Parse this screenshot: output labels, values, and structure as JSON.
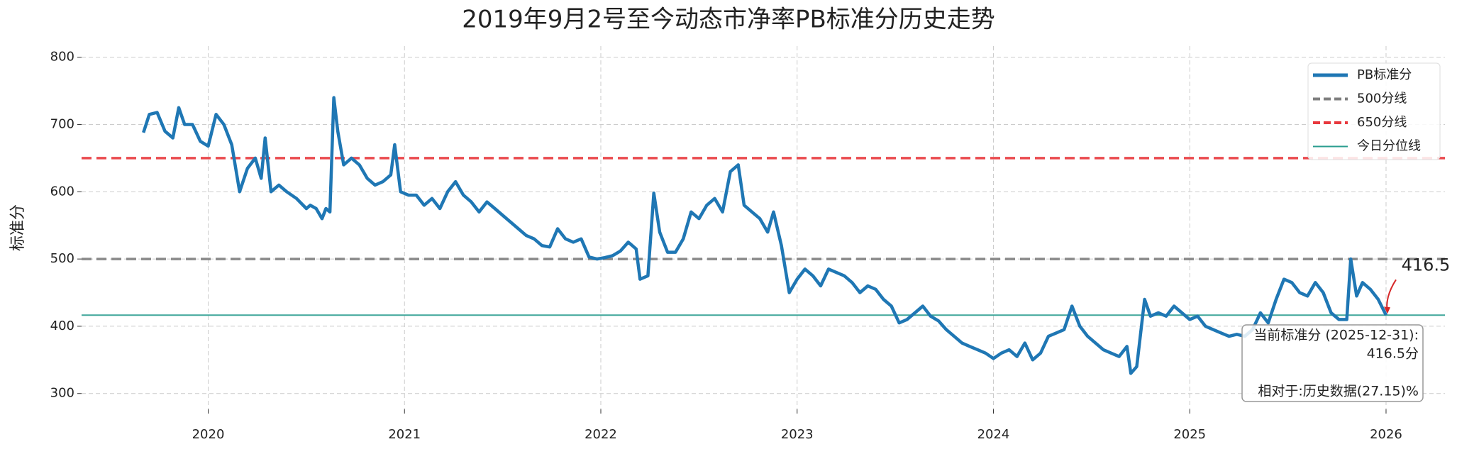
{
  "chart_data": {
    "type": "line",
    "title": "2019年9月2号至今动态市净率PB标准分历史走势",
    "ylabel": "标准分",
    "x": [
      2019.67,
      2019.7,
      2019.74,
      2019.78,
      2019.82,
      2019.85,
      2019.88,
      2019.92,
      2019.96,
      2020.0,
      2020.04,
      2020.08,
      2020.12,
      2020.16,
      2020.2,
      2020.24,
      2020.27,
      2020.29,
      2020.32,
      2020.36,
      2020.4,
      2020.45,
      2020.5,
      2020.52,
      2020.55,
      2020.58,
      2020.6,
      2020.62,
      2020.64,
      2020.66,
      2020.69,
      2020.73,
      2020.77,
      2020.81,
      2020.85,
      2020.89,
      2020.93,
      2020.95,
      2020.98,
      2021.02,
      2021.06,
      2021.1,
      2021.14,
      2021.18,
      2021.22,
      2021.26,
      2021.3,
      2021.34,
      2021.38,
      2021.42,
      2021.46,
      2021.5,
      2021.54,
      2021.58,
      2021.62,
      2021.66,
      2021.7,
      2021.74,
      2021.78,
      2021.82,
      2021.86,
      2021.9,
      2021.94,
      2021.98,
      2022.02,
      2022.06,
      2022.1,
      2022.14,
      2022.18,
      2022.2,
      2022.24,
      2022.27,
      2022.3,
      2022.34,
      2022.38,
      2022.42,
      2022.46,
      2022.5,
      2022.54,
      2022.58,
      2022.62,
      2022.66,
      2022.7,
      2022.73,
      2022.77,
      2022.81,
      2022.85,
      2022.88,
      2022.92,
      2022.96,
      2023.0,
      2023.04,
      2023.08,
      2023.12,
      2023.16,
      2023.2,
      2023.24,
      2023.28,
      2023.32,
      2023.36,
      2023.4,
      2023.44,
      2023.48,
      2023.52,
      2023.56,
      2023.6,
      2023.64,
      2023.68,
      2023.72,
      2023.76,
      2023.8,
      2023.84,
      2023.88,
      2023.92,
      2023.96,
      2024.0,
      2024.04,
      2024.08,
      2024.12,
      2024.16,
      2024.2,
      2024.24,
      2024.28,
      2024.32,
      2024.36,
      2024.4,
      2024.44,
      2024.48,
      2024.52,
      2024.56,
      2024.6,
      2024.64,
      2024.68,
      2024.7,
      2024.73,
      2024.77,
      2024.8,
      2024.84,
      2024.88,
      2024.92,
      2024.96,
      2025.0,
      2025.04,
      2025.08,
      2025.12,
      2025.16,
      2025.2,
      2025.24,
      2025.28,
      2025.32,
      2025.36,
      2025.4,
      2025.44,
      2025.48,
      2025.52,
      2025.56,
      2025.6,
      2025.64,
      2025.68,
      2025.72,
      2025.76,
      2025.8,
      2025.82,
      2025.85,
      2025.88,
      2025.92,
      2025.96,
      2026.0
    ],
    "series": [
      {
        "name": "PB标准分",
        "color": "#1f77b4",
        "values": [
          688,
          715,
          718,
          690,
          680,
          725,
          700,
          700,
          675,
          668,
          715,
          700,
          670,
          600,
          635,
          650,
          620,
          680,
          600,
          610,
          600,
          590,
          575,
          580,
          575,
          560,
          575,
          570,
          740,
          690,
          640,
          650,
          640,
          620,
          610,
          615,
          625,
          670,
          600,
          595,
          595,
          580,
          590,
          575,
          600,
          615,
          595,
          585,
          570,
          585,
          575,
          565,
          555,
          545,
          535,
          530,
          520,
          518,
          545,
          530,
          525,
          530,
          503,
          500,
          502,
          505,
          512,
          525,
          515,
          470,
          475,
          598,
          540,
          510,
          510,
          530,
          570,
          560,
          580,
          590,
          570,
          630,
          640,
          580,
          570,
          560,
          540,
          570,
          520,
          450,
          470,
          485,
          475,
          460,
          485,
          480,
          475,
          465,
          450,
          460,
          455,
          440,
          430,
          405,
          410,
          420,
          430,
          415,
          408,
          395,
          385,
          375,
          370,
          365,
          360,
          352,
          360,
          365,
          355,
          375,
          350,
          360,
          385,
          390,
          395,
          430,
          400,
          385,
          375,
          365,
          360,
          355,
          370,
          330,
          340,
          440,
          415,
          420,
          415,
          430,
          420,
          410,
          415,
          400,
          395,
          390,
          385,
          388,
          385,
          395,
          420,
          405,
          440,
          470,
          465,
          450,
          445,
          465,
          450,
          420,
          410,
          410,
          500,
          445,
          465,
          455,
          440,
          416.5
        ]
      }
    ],
    "hlines": [
      {
        "name": "500分线",
        "value": 500,
        "color": "#7f7f7f",
        "style": "dashed"
      },
      {
        "name": "650分线",
        "value": 650,
        "color": "#e8383d",
        "style": "dashed"
      },
      {
        "name": "今日分位线",
        "value": 416.5,
        "color": "#2a9d8f",
        "style": "solid"
      }
    ],
    "annotation": {
      "text": "416.5",
      "color": "#d62728"
    },
    "note_lines": [
      "当前标准分 (2025-12-31):",
      "416.5分",
      "相对于:历史数据(27.15)%"
    ],
    "xlim": [
      2019.355,
      2026.3
    ],
    "xticks": [
      2020,
      2021,
      2022,
      2023,
      2024,
      2025,
      2026
    ],
    "ylim": [
      276.5,
      816.6
    ],
    "yticks": [
      300,
      400,
      500,
      600,
      700,
      800
    ],
    "grid": true,
    "legend": "upper right"
  }
}
